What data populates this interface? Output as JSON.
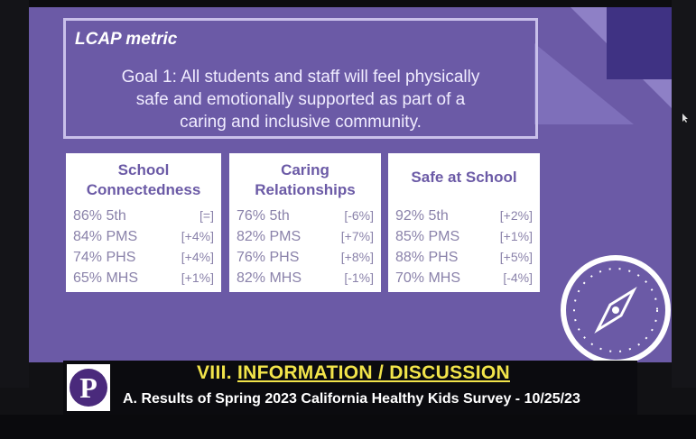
{
  "slide": {
    "lcap_title": "LCAP metric",
    "goal_line1": "Goal 1: All students and staff will feel physically",
    "goal_line2": "safe and emotionally supported as part of a",
    "goal_line3": "caring and inclusive community."
  },
  "cards": [
    {
      "title_line1": "School",
      "title_line2": "Connectedness",
      "rows": [
        {
          "label": "86% 5th",
          "change": "[=]"
        },
        {
          "label": "84% PMS",
          "change": "[+4%]"
        },
        {
          "label": "74% PHS",
          "change": "[+4%]"
        },
        {
          "label": "65% MHS",
          "change": "[+1%]"
        }
      ]
    },
    {
      "title_line1": "Caring",
      "title_line2": "Relationships",
      "rows": [
        {
          "label": "76% 5th",
          "change": "[-6%]"
        },
        {
          "label": "82% PMS",
          "change": "[+7%]"
        },
        {
          "label": "76% PHS",
          "change": "[+8%]"
        },
        {
          "label": "82% MHS",
          "change": "[-1%]"
        }
      ]
    },
    {
      "title_line1": "Safe at School",
      "title_line2": "",
      "rows": [
        {
          "label": "92% 5th",
          "change": "[+2%]"
        },
        {
          "label": "85% PMS",
          "change": "[+1%]"
        },
        {
          "label": "88% PHS",
          "change": "[+5%]"
        },
        {
          "label": "70% MHS",
          "change": "[-4%]"
        }
      ]
    }
  ],
  "banner": {
    "prefix": "VIII. ",
    "title": "INFORMATION / DISCUSSION",
    "subtitle": "A. Results of Spring 2023 California Healthy Kids Survey - 10/25/23",
    "logo_letter": "P"
  },
  "colors": {
    "slide_bg": "#6b5aa6",
    "card_title": "#6b5aa6",
    "banner_title": "#f2e44a"
  },
  "icons": {
    "compass": "compass-icon",
    "cursor": "mouse-cursor-icon"
  }
}
